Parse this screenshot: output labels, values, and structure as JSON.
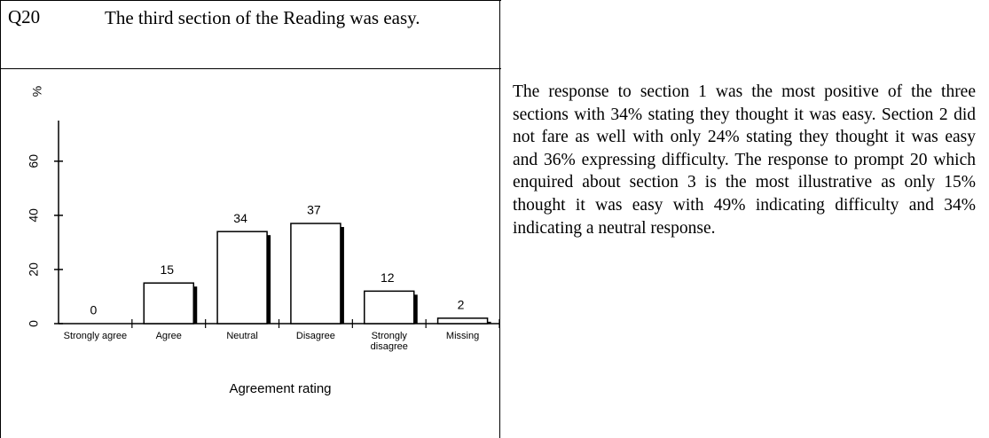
{
  "question": {
    "id": "Q20",
    "text": "The third section of the Reading was easy."
  },
  "chart_data": {
    "type": "bar",
    "ylabel": "%",
    "xlabel": "Agreement rating",
    "categories": [
      "Strongly agree",
      "Agree",
      "Neutral",
      "Disagree",
      "Strongly disagree",
      "Missing"
    ],
    "values": [
      0,
      15,
      34,
      37,
      12,
      2
    ],
    "color": "#ffffff",
    "ylim": [
      0,
      75
    ],
    "yticks": [
      0,
      20,
      40,
      60
    ]
  },
  "paragraph": "The response to section 1 was the most positive of the three sections with 34% stating they thought it was easy. Section 2 did not fare as well with only 24% stating they thought it was easy and 36% expressing difficulty. The response to prompt 20 which enquired about section 3 is the most illustrative as only 15% thought it was easy with 49% indicating difficulty and 34% indicating a neutral response."
}
